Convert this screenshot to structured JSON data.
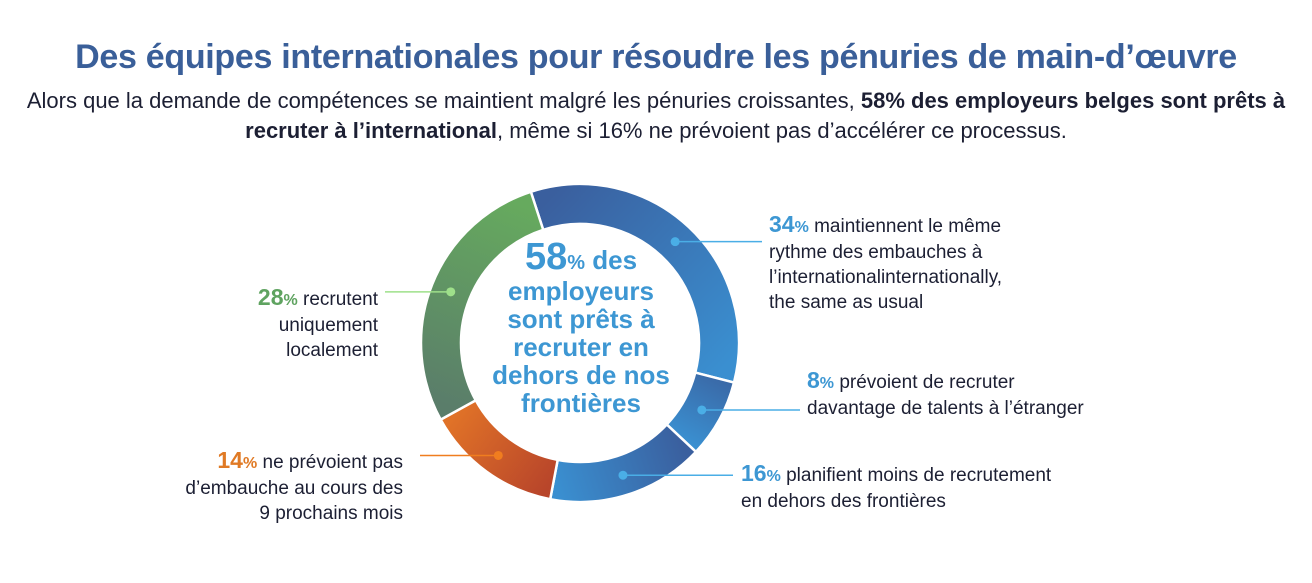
{
  "header": {
    "title": "Des équipes internationales pour résoudre les pénuries de main-d’œuvre",
    "subtitle_part1": "Alors que la demande de compétences se maintient malgré les pénuries croissantes, ",
    "subtitle_bold": "58% des employeurs belges sont prêts à recruter à l’international",
    "subtitle_part2": ", même si 16% ne prévoient pas d’accélérer ce processus."
  },
  "center": {
    "value": "58",
    "pct": "%",
    "line1_rest": " des",
    "line2": "employeurs",
    "line3": "sont prêts à",
    "line4": "recruter en",
    "line5": "dehors de nos",
    "line6": "frontières"
  },
  "chart_data": {
    "type": "pie",
    "donut": true,
    "title": "Des équipes internationales pour résoudre les pénuries de main-d’œuvre",
    "unit": "%",
    "slices": [
      {
        "name": "maintiennent le même rythme des embauches à l’internationalinternationally, the same as usual",
        "value": 34,
        "color": "#3a8fd0",
        "color_start": "#3a5f9e",
        "num": "34",
        "pct": "%",
        "lines": [
          "maintiennent le même",
          "rythme des embauches à",
          "l’internationalinternationally,",
          "the same as usual"
        ],
        "label_color": "#3d97d3"
      },
      {
        "name": "prévoient de recruter davantage de talents à l’étranger",
        "value": 8,
        "color": "#3a8fd0",
        "color_start": "#3a6aa8",
        "num": "8",
        "pct": "%",
        "lines": [
          "prévoient de recruter",
          "davantage de talents à l’étranger"
        ],
        "label_color": "#3d97d3"
      },
      {
        "name": "planifient moins de recrutement en dehors des frontières",
        "value": 16,
        "color": "#3a8fd0",
        "color_start": "#3a5f9e",
        "num": "16",
        "pct": "%",
        "lines": [
          "planifient moins de recrutement",
          "en dehors des frontières"
        ],
        "label_color": "#3d97d3"
      },
      {
        "name": "ne prévoient pas d’embauche au cours des 9 prochains mois",
        "value": 14,
        "color": "#e07228",
        "color_start": "#b8452a",
        "num": "14",
        "pct": "%",
        "lines": [
          "ne prévoient pas",
          "d’embauche au cours des",
          "9 prochains mois"
        ],
        "label_color": "#e07a25"
      },
      {
        "name": "recrutent uniquement localement",
        "value": 28,
        "color": "#66aa5e",
        "color_start": "#5a7d6a",
        "num": "28",
        "pct": "%",
        "lines": [
          "recrutent",
          "uniquement",
          "localement"
        ],
        "label_color": "#5fa360"
      }
    ],
    "start_angle_deg": -18,
    "legend": "callouts"
  }
}
